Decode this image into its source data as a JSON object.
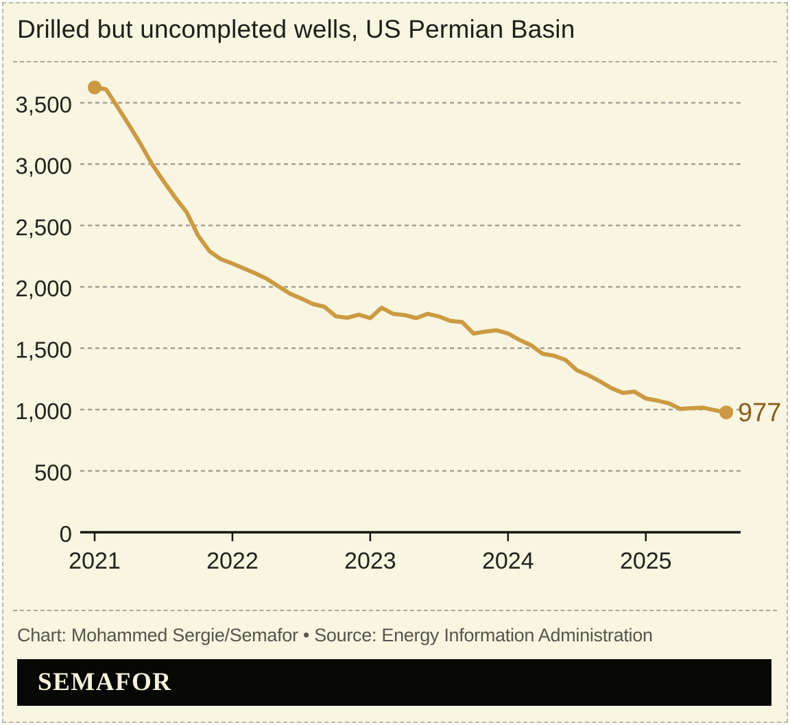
{
  "chart_data": {
    "type": "line",
    "title": "Drilled but uncompleted wells, US Permian Basin",
    "series_name": "Drilled but uncompleted wells (DUCs)",
    "x_unit": "month",
    "x": [
      "2021-01",
      "2021-02",
      "2021-03",
      "2021-04",
      "2021-05",
      "2021-06",
      "2021-07",
      "2021-08",
      "2021-09",
      "2021-10",
      "2021-11",
      "2021-12",
      "2022-01",
      "2022-02",
      "2022-03",
      "2022-04",
      "2022-05",
      "2022-06",
      "2022-07",
      "2022-08",
      "2022-09",
      "2022-10",
      "2022-11",
      "2022-12",
      "2023-01",
      "2023-02",
      "2023-03",
      "2023-04",
      "2023-05",
      "2023-06",
      "2023-07",
      "2023-08",
      "2023-09",
      "2023-10",
      "2023-11",
      "2023-12",
      "2024-01",
      "2024-02",
      "2024-03",
      "2024-04",
      "2024-05",
      "2024-06",
      "2024-07",
      "2024-08",
      "2024-09",
      "2024-10",
      "2024-11",
      "2024-12",
      "2025-01",
      "2025-02",
      "2025-03",
      "2025-04",
      "2025-05",
      "2025-06",
      "2025-07",
      "2025-08"
    ],
    "values": [
      3625,
      3610,
      3465,
      3318,
      3165,
      3000,
      2860,
      2730,
      2610,
      2420,
      2290,
      2225,
      2190,
      2150,
      2110,
      2065,
      2005,
      1945,
      1905,
      1860,
      1838,
      1760,
      1748,
      1773,
      1745,
      1830,
      1780,
      1770,
      1745,
      1780,
      1758,
      1722,
      1713,
      1620,
      1635,
      1646,
      1620,
      1567,
      1525,
      1455,
      1438,
      1405,
      1320,
      1280,
      1230,
      1175,
      1135,
      1146,
      1090,
      1073,
      1051,
      1005,
      1012,
      1015,
      995,
      977
    ],
    "end_label": "977",
    "xlabel": "",
    "ylabel": "",
    "ylim": [
      0,
      3780
    ],
    "y_ticks": [
      {
        "value": 0,
        "label": "0"
      },
      {
        "value": 500,
        "label": "500"
      },
      {
        "value": 1000,
        "label": "1,000"
      },
      {
        "value": 1500,
        "label": "1,500"
      },
      {
        "value": 2000,
        "label": "2,000"
      },
      {
        "value": 2500,
        "label": "2,500"
      },
      {
        "value": 3000,
        "label": "3,000"
      },
      {
        "value": 3500,
        "label": "3,500"
      }
    ],
    "x_ticks": [
      {
        "x": "2021-01",
        "label": "2021"
      },
      {
        "x": "2022-01",
        "label": "2022"
      },
      {
        "x": "2023-01",
        "label": "2023"
      },
      {
        "x": "2024-01",
        "label": "2024"
      },
      {
        "x": "2025-01",
        "label": "2025"
      }
    ],
    "grid": "horizontal-dashed",
    "legend": "none",
    "markers": "endpoints-only"
  },
  "footer": {
    "credit": "Chart: Mohammed Sergie/Semafor • Source: Energy Information Administration",
    "brand": "SEMAFOR"
  },
  "colors": {
    "background": "#f8f5e1",
    "line": "#cb9a42",
    "grid": "#a3a096",
    "axis": "#16160f",
    "title_text": "#1e1e18",
    "tick_label": "#23231d",
    "end_label": "#8a5c1c",
    "credit_text": "#56544c",
    "banner_bg": "#070705",
    "banner_text": "#f6f1dc"
  }
}
